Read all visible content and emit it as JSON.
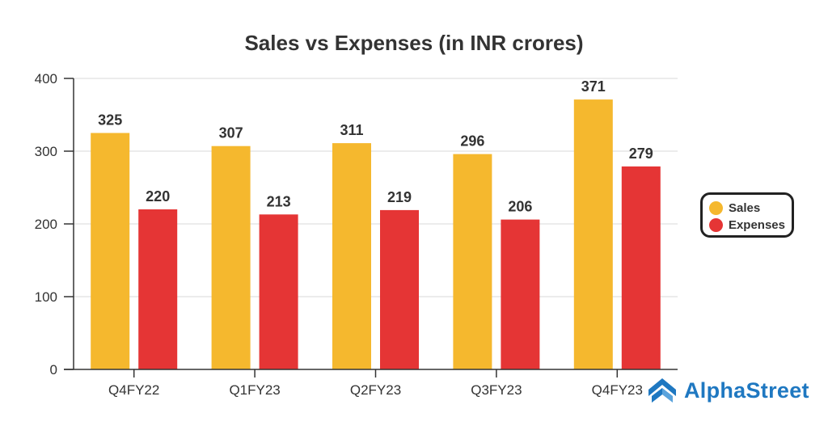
{
  "chart_data": {
    "type": "bar",
    "title": "Sales vs Expenses (in INR crores)",
    "xlabel": "",
    "ylabel": "",
    "categories": [
      "Q4FY22",
      "Q1FY23",
      "Q2FY23",
      "Q3FY23",
      "Q4FY23"
    ],
    "series": [
      {
        "name": "Sales",
        "color": "#f5b82e",
        "values": [
          325,
          307,
          311,
          296,
          371
        ],
        "labels": [
          "325",
          "307",
          "311",
          "296",
          "371"
        ]
      },
      {
        "name": "Expenses",
        "color": "#e53535",
        "values": [
          220,
          213,
          219,
          206,
          279
        ],
        "labels": [
          "220",
          "213",
          "219",
          "206",
          "279"
        ]
      }
    ],
    "ylim": [
      0,
      400
    ],
    "yticks": [
      "0",
      "100",
      "200",
      "300",
      "400"
    ],
    "grid": true,
    "legend_position": "right"
  },
  "brand": {
    "name": "AlphaStreet",
    "color": "#1f78c1"
  }
}
